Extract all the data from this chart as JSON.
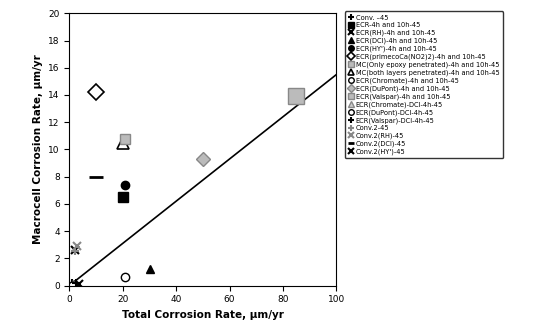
{
  "title": "",
  "xlabel": "Total Corrosion Rate, μm/yr",
  "ylabel": "Macrocell Corrosion Rate, μm/yr",
  "xlim": [
    0,
    100
  ],
  "ylim": [
    0,
    20
  ],
  "xticks": [
    0,
    20,
    40,
    60,
    80,
    100
  ],
  "yticks": [
    0,
    2,
    4,
    6,
    8,
    10,
    12,
    14,
    16,
    18,
    20
  ],
  "trendline": [
    [
      0,
      100
    ],
    [
      0,
      15.5
    ]
  ],
  "series": [
    {
      "label": "Conv. –45",
      "marker": "+",
      "color": "black",
      "mfc": "black",
      "ms": 6,
      "mew": 1.5,
      "x": [
        1
      ],
      "y": [
        0.2
      ]
    },
    {
      "label": "ECR-4h and 10h-45",
      "marker": "s",
      "color": "black",
      "mfc": "black",
      "ms": 7,
      "mew": 1.0,
      "x": [
        20
      ],
      "y": [
        6.5
      ]
    },
    {
      "label": "ECR(RH)-4h and 10h-45",
      "marker": "x",
      "color": "black",
      "mfc": "black",
      "ms": 6,
      "mew": 1.5,
      "x": [
        2
      ],
      "y": [
        2.6
      ]
    },
    {
      "label": "ECR(DCI)-4h and 10h-45",
      "marker": "^",
      "color": "black",
      "mfc": "black",
      "ms": 6,
      "mew": 1.0,
      "x": [
        30
      ],
      "y": [
        1.2
      ]
    },
    {
      "label": "ECR(HY')-4h and 10h-45",
      "marker": "o",
      "color": "black",
      "mfc": "black",
      "ms": 6,
      "mew": 1.0,
      "x": [
        21
      ],
      "y": [
        7.4
      ]
    },
    {
      "label": "ECR(primecoCa(NO2)2)-4h and 10h-45",
      "marker": "D",
      "color": "black",
      "mfc": "white",
      "ms": 8,
      "mew": 1.2,
      "x": [
        10
      ],
      "y": [
        14.2
      ]
    },
    {
      "label": "MC(Only epoxy penetrated)-4h and 10h-45",
      "marker": "s",
      "color": "#888888",
      "mfc": "#bbbbbb",
      "ms": 11,
      "mew": 1.0,
      "x": [
        85
      ],
      "y": [
        13.9
      ]
    },
    {
      "label": "MC(both layers penetrated)-4h and 10h-45",
      "marker": "^",
      "color": "black",
      "mfc": "white",
      "ms": 8,
      "mew": 1.2,
      "x": [
        20
      ],
      "y": [
        10.5
      ]
    },
    {
      "label": "ECR(Chromate)-4h and 10h-45",
      "marker": "o",
      "color": "black",
      "mfc": "white",
      "ms": 6,
      "mew": 1.0,
      "x": [
        21
      ],
      "y": [
        0.6
      ]
    },
    {
      "label": "ECR(DuPont)-4h and 10h-45",
      "marker": "D",
      "color": "#888888",
      "mfc": "#bbbbbb",
      "ms": 7,
      "mew": 1.0,
      "x": [
        50
      ],
      "y": [
        9.3
      ]
    },
    {
      "label": "ECR(Valspar)-4h and 10h-45",
      "marker": "s",
      "color": "#888888",
      "mfc": "#bbbbbb",
      "ms": 7,
      "mew": 1.0,
      "x": [
        21
      ],
      "y": [
        10.8
      ]
    },
    {
      "label": "ECR(Chromate)-DCI-4h-45",
      "marker": "^",
      "color": "#888888",
      "mfc": "#cccccc",
      "ms": 6,
      "mew": 1.0,
      "x": [
        1.5
      ],
      "y": [
        0.1
      ]
    },
    {
      "label": "ECR(DuPont)-DCI-4h-45",
      "marker": "o",
      "color": "black",
      "mfc": "white",
      "ms": 5,
      "mew": 1.0,
      "x": [
        1
      ],
      "y": [
        0.05
      ]
    },
    {
      "label": "ECR(Valspar)-DCI-4h-45",
      "marker": "+",
      "color": "black",
      "mfc": "black",
      "ms": 6,
      "mew": 1.5,
      "x": [
        2.5
      ],
      "y": [
        0.15
      ]
    },
    {
      "label": "Conv.2-45",
      "marker": "+",
      "color": "#888888",
      "mfc": "#888888",
      "ms": 6,
      "mew": 1.5,
      "x": [
        2
      ],
      "y": [
        2.5
      ]
    },
    {
      "label": "Conv.2(RH)-45",
      "marker": "x",
      "color": "#888888",
      "mfc": "#888888",
      "ms": 6,
      "mew": 1.5,
      "x": [
        3
      ],
      "y": [
        2.9
      ]
    },
    {
      "label": "Conv.2(DCI)-45",
      "marker": "_",
      "color": "black",
      "mfc": "black",
      "ms": 10,
      "mew": 2.0,
      "x": [
        10
      ],
      "y": [
        8.0
      ]
    },
    {
      "label": "Conv.2(HY')-45",
      "marker": "x",
      "color": "black",
      "mfc": "black",
      "ms": 6,
      "mew": 1.5,
      "x": [
        3.5
      ],
      "y": [
        0.1
      ]
    }
  ]
}
